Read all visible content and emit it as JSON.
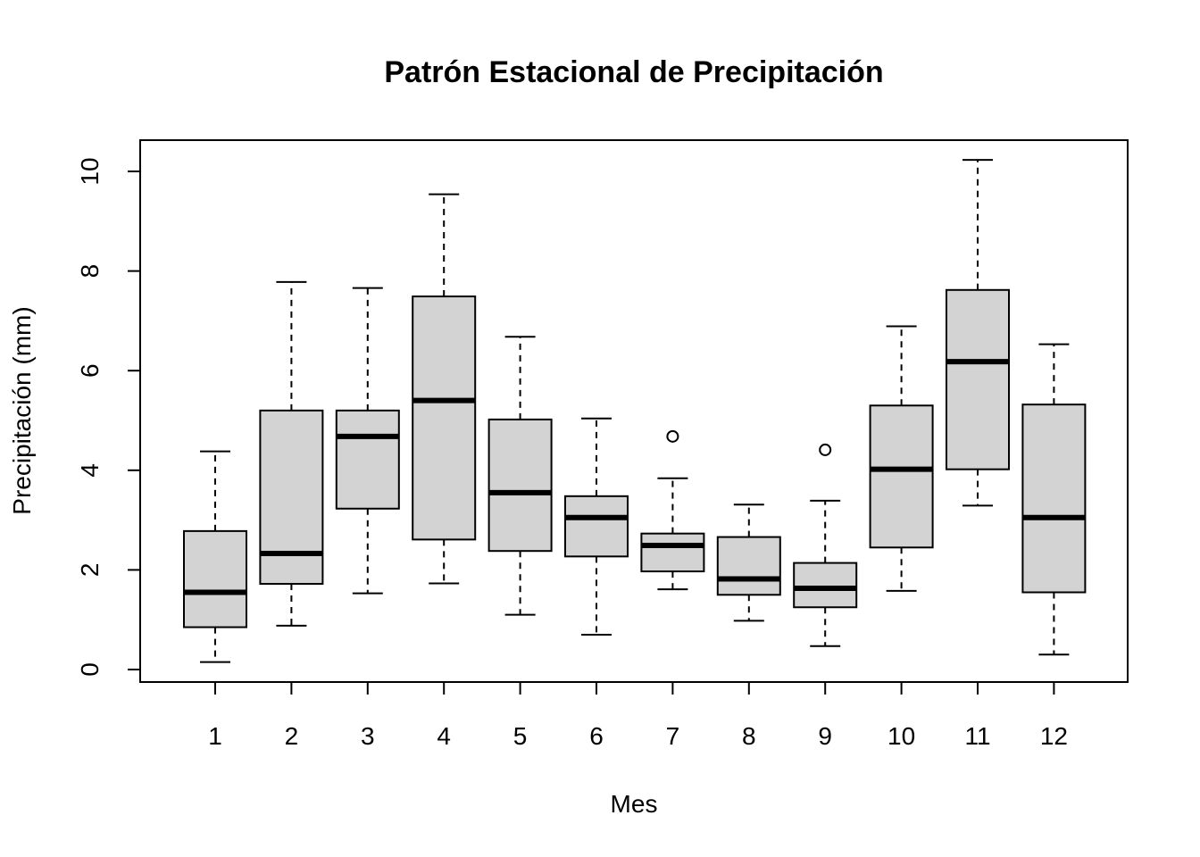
{
  "chart_data": {
    "type": "boxplot",
    "title": "Patrón Estacional de Precipitación",
    "xlabel": "Mes",
    "ylabel": "Precipitación (mm)",
    "ylim": [
      -0.25,
      10.6
    ],
    "yticks": [
      0,
      2,
      4,
      6,
      8,
      10
    ],
    "categories": [
      "1",
      "2",
      "3",
      "4",
      "5",
      "6",
      "7",
      "8",
      "9",
      "10",
      "11",
      "12"
    ],
    "boxes": [
      {
        "min": 0.15,
        "q1": 0.85,
        "median": 1.55,
        "q3": 2.78,
        "max": 4.38,
        "outliers": []
      },
      {
        "min": 0.88,
        "q1": 1.72,
        "median": 2.33,
        "q3": 5.2,
        "max": 7.78,
        "outliers": []
      },
      {
        "min": 1.53,
        "q1": 3.23,
        "median": 4.68,
        "q3": 5.2,
        "max": 7.66,
        "outliers": []
      },
      {
        "min": 1.73,
        "q1": 2.61,
        "median": 5.4,
        "q3": 7.49,
        "max": 9.54,
        "outliers": []
      },
      {
        "min": 1.1,
        "q1": 2.38,
        "median": 3.55,
        "q3": 5.02,
        "max": 6.68,
        "outliers": []
      },
      {
        "min": 0.7,
        "q1": 2.27,
        "median": 3.05,
        "q3": 3.48,
        "max": 5.04,
        "outliers": []
      },
      {
        "min": 1.61,
        "q1": 1.97,
        "median": 2.49,
        "q3": 2.73,
        "max": 3.84,
        "outliers": [
          4.68
        ]
      },
      {
        "min": 0.98,
        "q1": 1.5,
        "median": 1.82,
        "q3": 2.66,
        "max": 3.31,
        "outliers": []
      },
      {
        "min": 0.47,
        "q1": 1.25,
        "median": 1.63,
        "q3": 2.14,
        "max": 3.39,
        "outliers": [
          4.41
        ]
      },
      {
        "min": 1.58,
        "q1": 2.45,
        "median": 4.02,
        "q3": 5.3,
        "max": 6.89,
        "outliers": []
      },
      {
        "min": 3.29,
        "q1": 4.02,
        "median": 6.18,
        "q3": 7.62,
        "max": 10.23,
        "outliers": []
      },
      {
        "min": 0.3,
        "q1": 1.55,
        "median": 3.05,
        "q3": 5.32,
        "max": 6.53,
        "outliers": []
      }
    ],
    "box_fill": "#d3d3d3",
    "line_color": "#000000",
    "grid": false,
    "legend": "none"
  }
}
